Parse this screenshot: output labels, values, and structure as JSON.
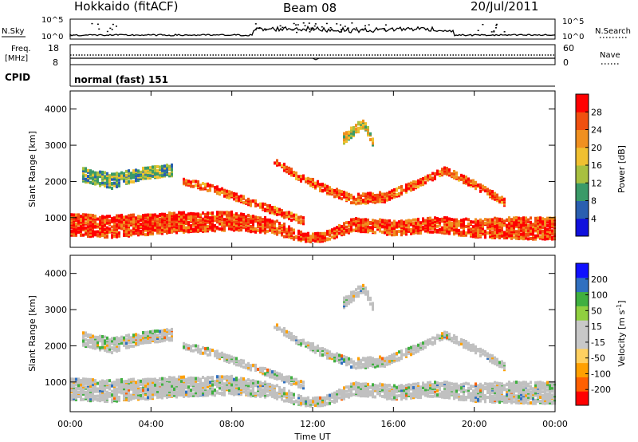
{
  "header": {
    "station": "Hokkaido (fitACF)",
    "beam": "Beam 08",
    "date": "20/Jul/2011"
  },
  "sky_panel": {
    "left_label": "N.Sky",
    "right_label": "N.Search",
    "left_ticks": [
      "10^5",
      "10^0"
    ],
    "right_ticks": [
      "10^5",
      "10^0"
    ]
  },
  "freq_panel": {
    "left_label_line1": "Freq.",
    "left_label_line2": "[MHz]",
    "right_label": "Nave",
    "left_ticks": [
      "18",
      "8"
    ],
    "right_ticks": [
      "60",
      "0"
    ]
  },
  "cpid_panel": {
    "label": "CPID",
    "text": "normal (fast) 151"
  },
  "colors": {
    "power_scale": [
      "#1010dd",
      "#2a5fb0",
      "#3a9a68",
      "#a8c040",
      "#f0c030",
      "#f09020",
      "#f05010",
      "#ff0000"
    ],
    "velocity_scale": [
      "#ff0000",
      "#ff6000",
      "#ffa000",
      "#ffd060",
      "#c8c8c8",
      "#c8c8c8",
      "#90d040",
      "#40b040",
      "#3070c0",
      "#1010ff"
    ],
    "ground_scatter": "#c0c0c0"
  },
  "chart_data": [
    {
      "type": "heatmap",
      "title": "",
      "xlabel": "",
      "ylabel": "Slant Range [km]",
      "x_ticks": [
        "00:00",
        "04:00",
        "08:00",
        "12:00",
        "16:00",
        "20:00",
        "00:00"
      ],
      "xlim_hours": [
        0,
        24
      ],
      "y_ticks": [
        1000,
        2000,
        3000,
        4000
      ],
      "ylim": [
        180,
        4500
      ],
      "colorbar": {
        "label": "Power [dB]",
        "ticks": [
          4,
          8,
          12,
          16,
          20,
          24,
          28
        ],
        "range": [
          0,
          32
        ]
      },
      "bands": [
        {
          "name": "main_low",
          "points": [
            [
              0,
              800,
              600
            ],
            [
              2,
              750,
              600
            ],
            [
              5,
              850,
              550
            ],
            [
              8,
              900,
              500
            ],
            [
              10,
              750,
              400
            ],
            [
              11.5,
              450,
              250
            ],
            [
              12.5,
              450,
              250
            ],
            [
              14,
              800,
              350
            ],
            [
              16,
              700,
              400
            ],
            [
              18,
              800,
              400
            ],
            [
              20,
              700,
              500
            ],
            [
              22,
              700,
              600
            ],
            [
              24,
              700,
              600
            ]
          ],
          "level": 27
        },
        {
          "name": "rising_arc",
          "points": [
            [
              5.5,
              2000,
              180
            ],
            [
              7,
              1800,
              200
            ],
            [
              8.5,
              1500,
              220
            ],
            [
              10,
              1200,
              200
            ],
            [
              11.5,
              900,
              200
            ]
          ],
          "level": 26
        },
        {
          "name": "noon_arc",
          "points": [
            [
              10,
              2600,
              160
            ],
            [
              11,
              2200,
              200
            ],
            [
              12.5,
              1800,
              240
            ],
            [
              14,
              1500,
              260
            ],
            [
              15.5,
              1550,
              260
            ],
            [
              17,
              1900,
              220
            ],
            [
              18.5,
              2300,
              200
            ],
            [
              20,
              1900,
              200
            ],
            [
              21.5,
              1400,
              180
            ]
          ],
          "level": 26
        },
        {
          "name": "early_cloud",
          "points": [
            [
              0.5,
              2200,
              400
            ],
            [
              2,
              2000,
              400
            ],
            [
              3.5,
              2200,
              300
            ],
            [
              5,
              2300,
              300
            ]
          ],
          "level": 12
        },
        {
          "name": "high_patch",
          "points": [
            [
              13.5,
              3200,
              300
            ],
            [
              14.5,
              3600,
              250
            ],
            [
              15,
              3000,
              200
            ]
          ],
          "level": 17
        }
      ]
    },
    {
      "type": "heatmap",
      "title": "",
      "xlabel": "Time UT",
      "ylabel": "Slant Range [km]",
      "x_ticks": [
        "00:00",
        "04:00",
        "08:00",
        "12:00",
        "16:00",
        "20:00",
        "00:00"
      ],
      "xlim_hours": [
        0,
        24
      ],
      "y_ticks": [
        1000,
        2000,
        3000,
        4000
      ],
      "ylim": [
        180,
        4500
      ],
      "colorbar": {
        "label": "Velocity [m s^-1]",
        "ticks": [
          -200,
          -100,
          -50,
          -15,
          15,
          50,
          100,
          200
        ],
        "range": [
          -250,
          250
        ]
      }
    }
  ]
}
